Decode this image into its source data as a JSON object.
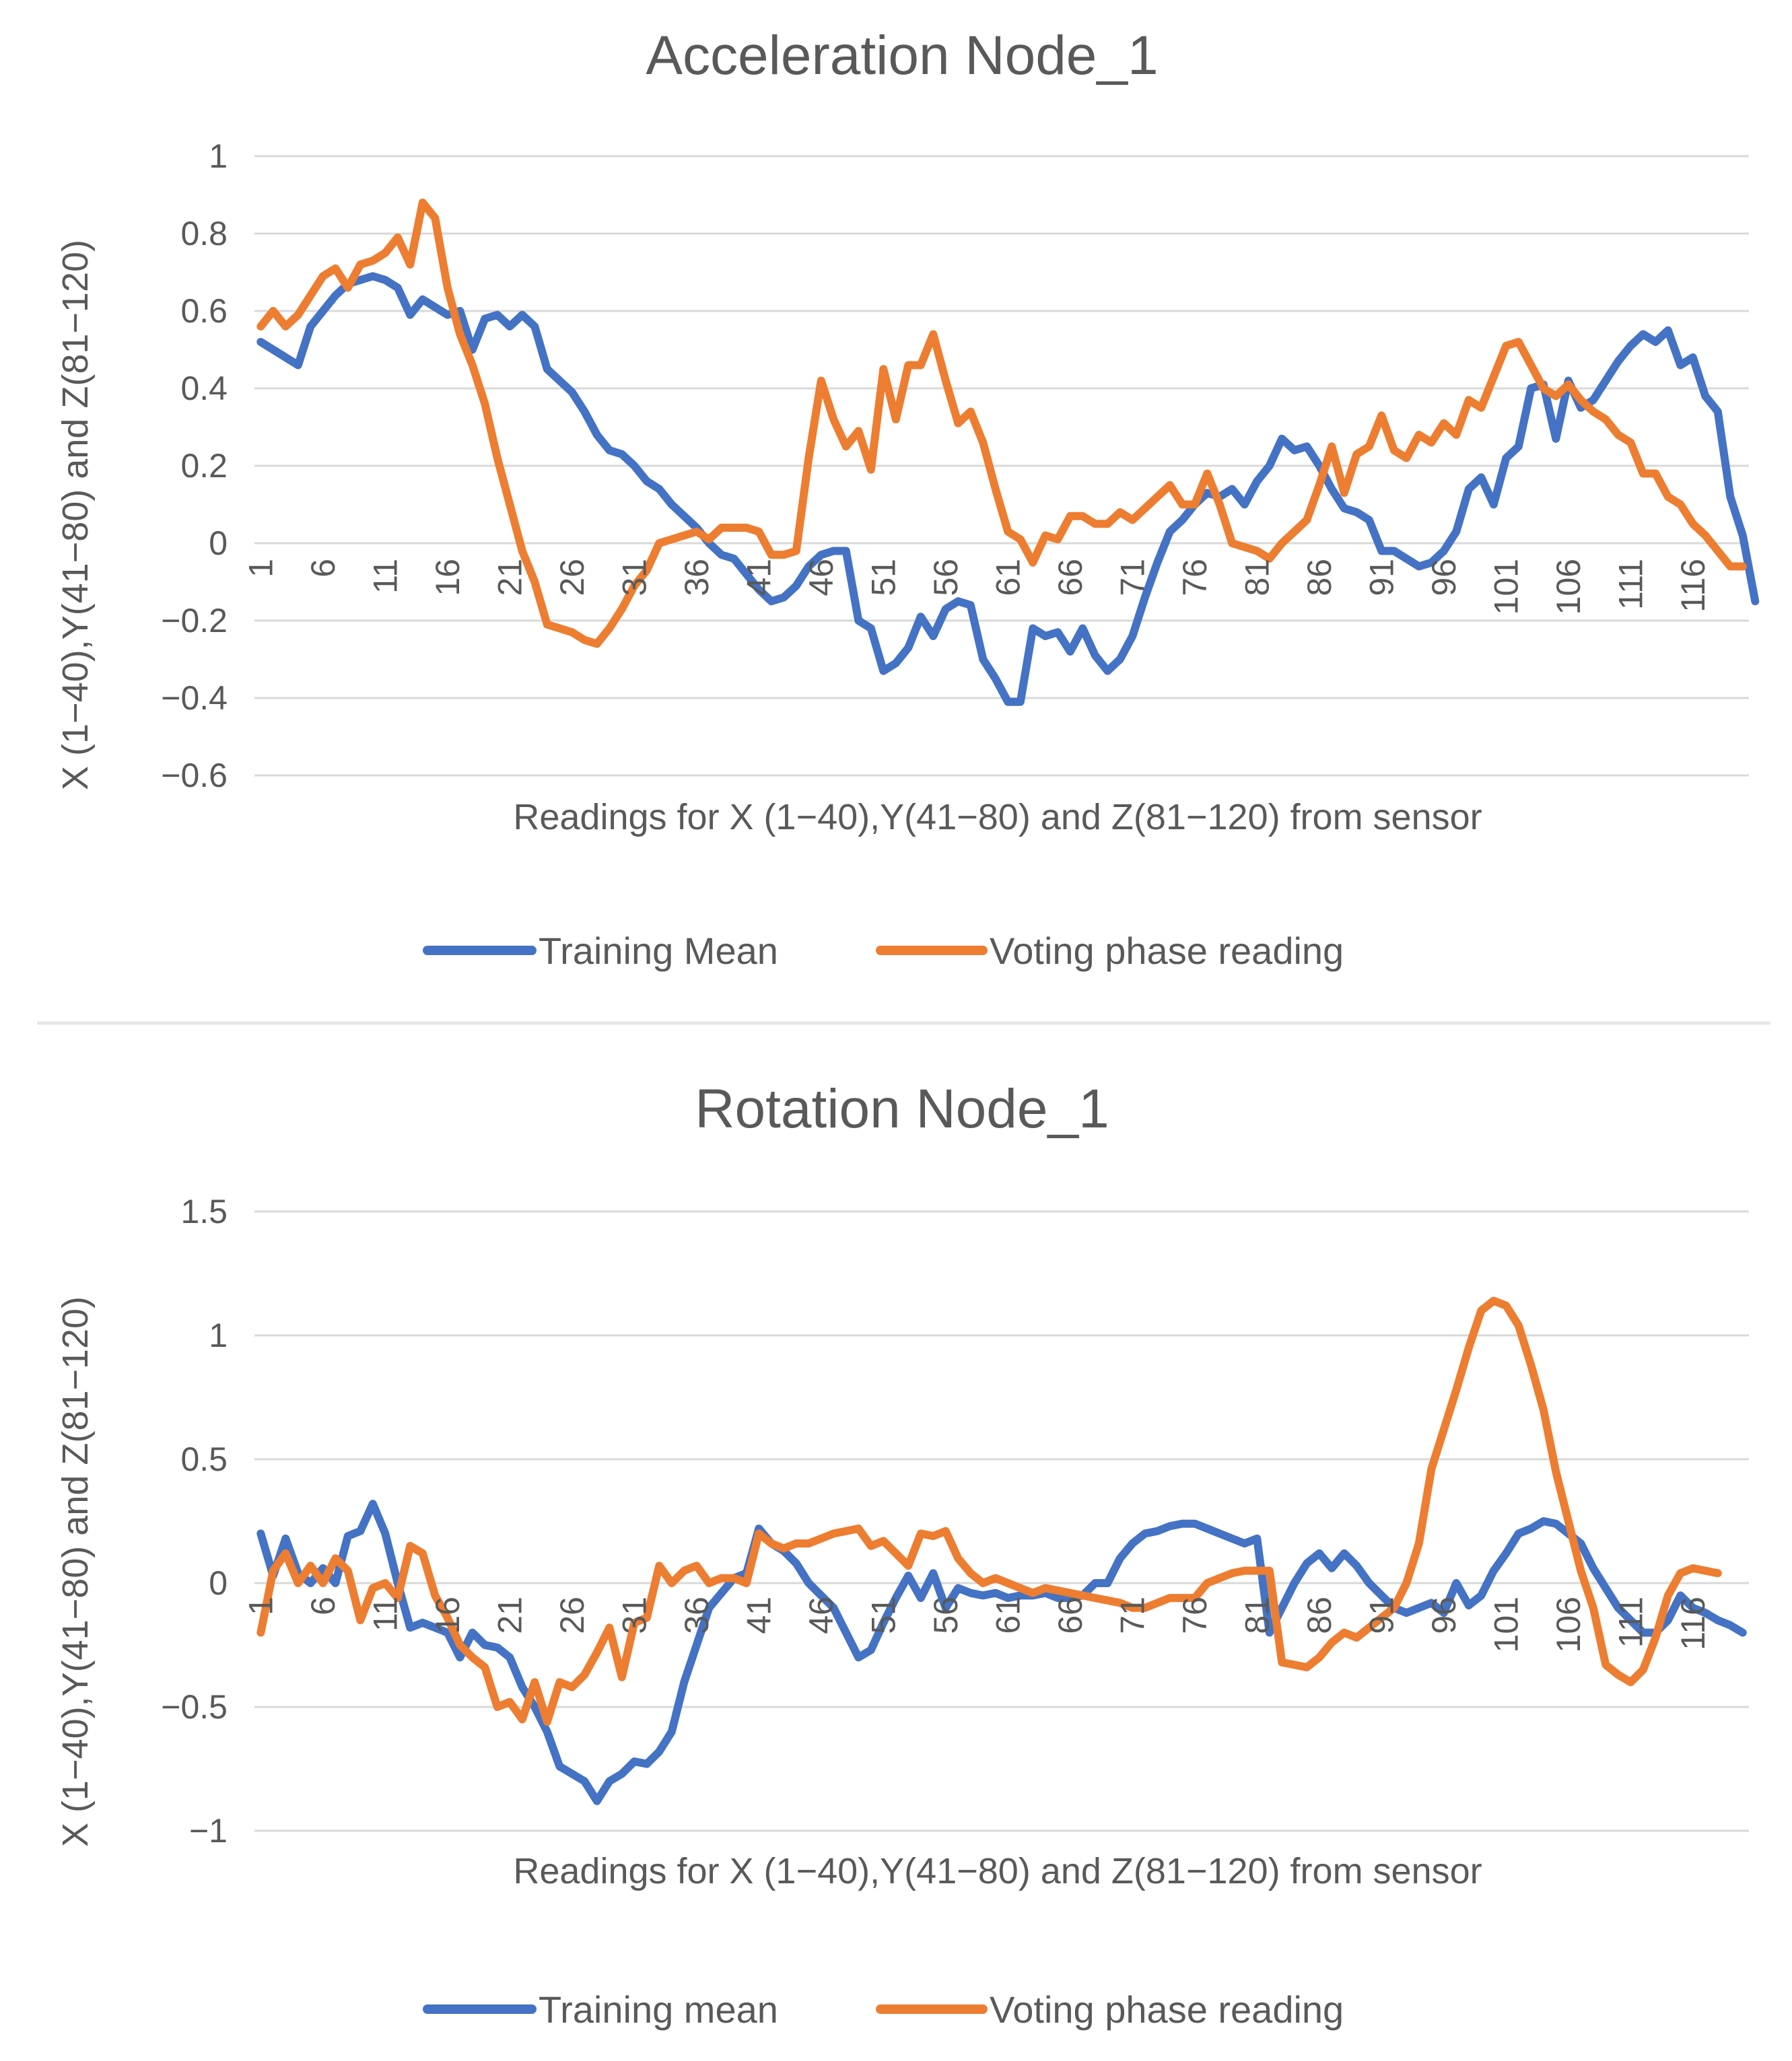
{
  "chart_data": [
    {
      "type": "line",
      "title": "Acceleration Node_1",
      "xlabel": "Readings for X (1−40),Y(41−80) and Z(81−120) from sensor",
      "ylabel": "X (1−40),Y(41−80) and Z(81−120)",
      "ylim": [
        -0.6,
        1
      ],
      "yticks": [
        1,
        0.8,
        0.6,
        0.4,
        0.2,
        0,
        -0.2,
        -0.4,
        -0.6
      ],
      "ytick_labels": [
        "1",
        "0.8",
        "0.6",
        "0.4",
        "0.2",
        "0",
        "−0.2",
        "−0.4",
        "−0.6"
      ],
      "x_count": 120,
      "x_ticks": [
        "1",
        "6",
        "11",
        "16",
        "21",
        "26",
        "31",
        "36",
        "41",
        "46",
        "51",
        "56",
        "61",
        "66",
        "71",
        "76",
        "81",
        "86",
        "91",
        "96",
        "101",
        "106",
        "111",
        "116"
      ],
      "grid": true,
      "legend_position": "bottom",
      "series": [
        {
          "name": "Training Mean",
          "color": "#4472c4",
          "values": [
            0.52,
            0.5,
            0.48,
            0.46,
            0.56,
            0.6,
            0.64,
            0.67,
            0.68,
            0.69,
            0.68,
            0.66,
            0.59,
            0.63,
            0.61,
            0.59,
            0.6,
            0.5,
            0.58,
            0.59,
            0.56,
            0.59,
            0.56,
            0.45,
            0.42,
            0.39,
            0.34,
            0.28,
            0.24,
            0.23,
            0.2,
            0.16,
            0.14,
            0.1,
            0.07,
            0.04,
            0.0,
            -0.03,
            -0.04,
            -0.08,
            -0.12,
            -0.15,
            -0.14,
            -0.11,
            -0.06,
            -0.03,
            -0.02,
            -0.02,
            -0.2,
            -0.22,
            -0.33,
            -0.31,
            -0.27,
            -0.19,
            -0.24,
            -0.17,
            -0.15,
            -0.16,
            -0.3,
            -0.35,
            -0.41,
            -0.41,
            -0.22,
            -0.24,
            -0.23,
            -0.28,
            -0.22,
            -0.29,
            -0.33,
            -0.3,
            -0.24,
            -0.14,
            -0.05,
            0.03,
            0.06,
            0.1,
            0.13,
            0.12,
            0.14,
            0.1,
            0.16,
            0.2,
            0.27,
            0.24,
            0.25,
            0.2,
            0.14,
            0.09,
            0.08,
            0.06,
            -0.02,
            -0.02,
            -0.04,
            -0.06,
            -0.05,
            -0.02,
            0.03,
            0.14,
            0.17,
            0.1,
            0.22,
            0.25,
            0.4,
            0.41,
            0.27,
            0.42,
            0.35,
            0.37,
            0.42,
            0.47,
            0.51,
            0.54,
            0.52,
            0.55,
            0.46,
            0.48,
            0.38,
            0.34,
            0.12,
            0.02,
            -0.15
          ]
        },
        {
          "name": "Voting phase reading",
          "color": "#ed7d31",
          "values": [
            0.56,
            0.6,
            0.56,
            0.59,
            0.64,
            0.69,
            0.71,
            0.66,
            0.72,
            0.73,
            0.75,
            0.79,
            0.72,
            0.88,
            0.84,
            0.66,
            0.54,
            0.46,
            0.36,
            0.22,
            0.1,
            -0.02,
            -0.1,
            -0.21,
            -0.22,
            -0.23,
            -0.25,
            -0.26,
            -0.22,
            -0.17,
            -0.11,
            -0.07,
            0.0,
            0.01,
            0.02,
            0.03,
            0.01,
            0.04,
            0.04,
            0.04,
            0.03,
            -0.03,
            -0.03,
            -0.02,
            0.22,
            0.42,
            0.32,
            0.25,
            0.29,
            0.19,
            0.45,
            0.32,
            0.46,
            0.46,
            0.54,
            0.42,
            0.31,
            0.34,
            0.26,
            0.14,
            0.03,
            0.01,
            -0.05,
            0.02,
            0.01,
            0.07,
            0.07,
            0.05,
            0.05,
            0.08,
            0.06,
            0.09,
            0.12,
            0.15,
            0.1,
            0.1,
            0.18,
            0.1,
            0.0,
            -0.01,
            -0.02,
            -0.04,
            0.0,
            0.03,
            0.06,
            0.15,
            0.25,
            0.13,
            0.23,
            0.25,
            0.33,
            0.24,
            0.22,
            0.28,
            0.26,
            0.31,
            0.28,
            0.37,
            0.35,
            0.43,
            0.51,
            0.52,
            0.46,
            0.4,
            0.38,
            0.41,
            0.37,
            0.34,
            0.32,
            0.28,
            0.26,
            0.18,
            0.18,
            0.12,
            0.1,
            0.05,
            0.02,
            -0.02,
            -0.06,
            -0.06
          ]
        }
      ]
    },
    {
      "type": "line",
      "title": "Rotation Node_1",
      "xlabel": "Readings for X (1−40),Y(41−80) and Z(81−120) from sensor",
      "ylabel": "X (1−40),Y(41−80) and Z(81−120)",
      "ylim": [
        -1,
        1.5
      ],
      "yticks": [
        1.5,
        1,
        0.5,
        0,
        -0.5,
        -1
      ],
      "ytick_labels": [
        "1.5",
        "1",
        "0.5",
        "0",
        "−0.5",
        "−1"
      ],
      "x_count": 120,
      "x_ticks": [
        "1",
        "6",
        "11",
        "16",
        "21",
        "26",
        "31",
        "36",
        "41",
        "46",
        "51",
        "56",
        "61",
        "66",
        "71",
        "76",
        "81",
        "86",
        "91",
        "96",
        "101",
        "106",
        "111",
        "116"
      ],
      "grid": true,
      "legend_position": "bottom",
      "series": [
        {
          "name": "Training mean",
          "color": "#4472c4",
          "values": [
            0.2,
            0.03,
            0.18,
            0.04,
            0.0,
            0.06,
            0.0,
            0.19,
            0.21,
            0.32,
            0.2,
            0.0,
            -0.18,
            -0.16,
            -0.18,
            -0.2,
            -0.3,
            -0.2,
            -0.25,
            -0.26,
            -0.3,
            -0.42,
            -0.5,
            -0.6,
            -0.74,
            -0.77,
            -0.8,
            -0.88,
            -0.8,
            -0.77,
            -0.72,
            -0.73,
            -0.68,
            -0.6,
            -0.4,
            -0.25,
            -0.1,
            -0.04,
            0.02,
            0.04,
            0.22,
            0.16,
            0.13,
            0.08,
            0.0,
            -0.05,
            -0.1,
            -0.2,
            -0.3,
            -0.27,
            -0.16,
            -0.06,
            0.03,
            -0.06,
            0.04,
            -0.1,
            -0.02,
            -0.04,
            -0.05,
            -0.04,
            -0.06,
            -0.05,
            -0.05,
            -0.04,
            -0.06,
            -0.06,
            -0.05,
            0.0,
            0.0,
            0.1,
            0.16,
            0.2,
            0.21,
            0.23,
            0.24,
            0.24,
            0.22,
            0.2,
            0.18,
            0.16,
            0.18,
            -0.2,
            -0.1,
            0.0,
            0.08,
            0.12,
            0.06,
            0.12,
            0.07,
            0.0,
            -0.05,
            -0.1,
            -0.12,
            -0.1,
            -0.08,
            -0.12,
            0.0,
            -0.09,
            -0.05,
            0.05,
            0.12,
            0.2,
            0.22,
            0.25,
            0.24,
            0.2,
            0.16,
            0.06,
            -0.02,
            -0.1,
            -0.15,
            -0.2,
            -0.2,
            -0.15,
            -0.05,
            -0.1,
            -0.12,
            -0.15,
            -0.17,
            -0.2
          ]
        },
        {
          "name": "Voting phase reading",
          "color": "#ed7d31",
          "values": [
            -0.2,
            0.05,
            0.12,
            0.0,
            0.07,
            0.0,
            0.1,
            0.05,
            -0.15,
            -0.02,
            0.0,
            -0.06,
            0.15,
            0.12,
            -0.05,
            -0.14,
            -0.25,
            -0.3,
            -0.34,
            -0.5,
            -0.48,
            -0.55,
            -0.4,
            -0.56,
            -0.4,
            -0.42,
            -0.37,
            -0.28,
            -0.18,
            -0.38,
            -0.16,
            -0.14,
            0.07,
            0.0,
            0.05,
            0.07,
            0.0,
            0.02,
            0.02,
            0.0,
            0.2,
            0.16,
            0.14,
            0.16,
            0.16,
            0.18,
            0.2,
            0.21,
            0.22,
            0.15,
            0.17,
            0.12,
            0.07,
            0.2,
            0.19,
            0.21,
            0.1,
            0.04,
            0.0,
            0.02,
            0.0,
            -0.02,
            -0.04,
            -0.02,
            -0.03,
            -0.04,
            -0.05,
            -0.06,
            -0.07,
            -0.08,
            -0.1,
            -0.1,
            -0.08,
            -0.06,
            -0.06,
            -0.06,
            0.0,
            0.02,
            0.04,
            0.05,
            0.05,
            0.05,
            -0.32,
            -0.33,
            -0.34,
            -0.3,
            -0.24,
            -0.2,
            -0.22,
            -0.18,
            -0.14,
            -0.1,
            0.0,
            0.16,
            0.46,
            0.62,
            0.78,
            0.95,
            1.1,
            1.14,
            1.12,
            1.04,
            0.88,
            0.7,
            0.45,
            0.25,
            0.05,
            -0.1,
            -0.33,
            -0.37,
            -0.4,
            -0.35,
            -0.22,
            -0.05,
            0.04,
            0.06,
            0.05,
            0.04
          ]
        }
      ]
    }
  ]
}
